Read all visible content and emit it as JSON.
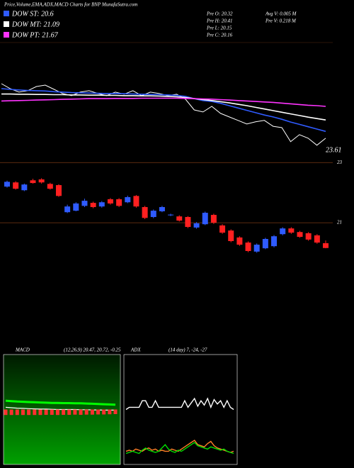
{
  "chart_data": [
    {
      "type": "line",
      "title": "Price,Volume,EMA,ADX,MACD Charts for BNP MunafaSutra.com",
      "annotations": [
        "Pre O: 20.32",
        "Pre H: 20.41",
        "Pre L: 20.15",
        "Pre C: 20.16",
        "Avg V: 0.005 M",
        "Pre V: 0.218 M",
        "23.61"
      ],
      "ylim": [
        19.7,
        24.4
      ],
      "series": [
        {
          "color": "#ffffff",
          "values": [
            22.64,
            22.43,
            22.28,
            22.34,
            22.52,
            22.58,
            22.4,
            22.22,
            22.13,
            22.28,
            22.34,
            22.22,
            22.13,
            22.28,
            22.19,
            22.34,
            22.13,
            22.28,
            22.22,
            22.13,
            22.19,
            21.98,
            21.52,
            21.43,
            21.67,
            21.37,
            21.22,
            21.07,
            20.92,
            21.01,
            21.07,
            20.82,
            20.76,
            20.16,
            20.46,
            20.31,
            20.01,
            20.31
          ]
        },
        {
          "name": "DOW ST: 20.6",
          "color": "#2f5bff",
          "values": [
            22.43,
            22.4,
            22.37,
            22.35,
            22.34,
            22.33,
            22.3,
            22.28,
            22.26,
            22.25,
            22.24,
            22.23,
            22.22,
            22.22,
            22.21,
            22.2,
            22.19,
            22.18,
            22.17,
            22.16,
            22.14,
            22.1,
            22.0,
            21.92,
            21.88,
            21.8,
            21.7,
            21.6,
            21.5,
            21.4,
            21.3,
            21.22,
            21.12,
            21.0,
            20.9,
            20.8,
            20.7,
            20.6
          ]
        },
        {
          "name": "DOW MT: 21.09",
          "color": "#ffffff",
          "values": [
            22.2,
            22.2,
            22.19,
            22.19,
            22.18,
            22.18,
            22.17,
            22.17,
            22.16,
            22.16,
            22.15,
            22.15,
            22.14,
            22.14,
            22.13,
            22.13,
            22.12,
            22.12,
            22.11,
            22.1,
            22.08,
            22.05,
            22.0,
            21.96,
            21.92,
            21.87,
            21.82,
            21.76,
            21.7,
            21.63,
            21.56,
            21.49,
            21.42,
            21.35,
            21.28,
            21.21,
            21.15,
            21.09
          ]
        },
        {
          "name": "DOW PT: 21.67",
          "color": "#ff33ff",
          "values": [
            21.9,
            21.91,
            21.92,
            21.93,
            21.94,
            21.95,
            21.96,
            21.97,
            21.98,
            21.99,
            22.0,
            22.0,
            22.0,
            22.01,
            22.01,
            22.01,
            22.02,
            22.02,
            22.02,
            22.02,
            22.02,
            22.01,
            22.0,
            21.99,
            21.98,
            21.96,
            21.94,
            21.92,
            21.9,
            21.88,
            21.86,
            21.84,
            21.81,
            21.78,
            21.75,
            21.72,
            21.7,
            21.67
          ]
        }
      ]
    },
    {
      "type": "candlestick",
      "ylim": [
        19.8,
        23.1
      ],
      "yticks": [
        21,
        23
      ],
      "up_color": "#2f5bff",
      "down_color": "#ff2020",
      "open": [
        22.2,
        22.34,
        22.08,
        22.41,
        22.44,
        22.29,
        22.25,
        21.35,
        21.4,
        21.56,
        21.66,
        21.54,
        21.78,
        21.78,
        21.68,
        21.89,
        21.52,
        21.19,
        21.38,
        21.26,
        21.21,
        21.19,
        20.84,
        20.95,
        21.26,
        20.91,
        20.74,
        20.51,
        20.34,
        20.04,
        20.15,
        20.22,
        20.62,
        20.81,
        20.69,
        20.65,
        20.58,
        20.32
      ],
      "high": [
        22.4,
        22.38,
        22.3,
        22.46,
        22.48,
        22.33,
        22.28,
        21.6,
        21.68,
        21.8,
        21.7,
        21.72,
        21.82,
        21.82,
        21.9,
        21.92,
        21.56,
        21.44,
        21.56,
        21.3,
        21.25,
        21.22,
        21.02,
        21.37,
        21.3,
        20.95,
        20.78,
        20.55,
        20.38,
        20.31,
        20.5,
        20.59,
        20.85,
        20.85,
        20.73,
        20.69,
        20.62,
        20.41
      ],
      "low": [
        22.17,
        22.1,
        22.05,
        22.3,
        22.3,
        22.1,
        21.86,
        21.32,
        21.38,
        21.52,
        21.48,
        21.5,
        21.6,
        21.52,
        21.65,
        21.5,
        21.12,
        21.15,
        21.35,
        21.22,
        21.04,
        20.82,
        20.8,
        20.92,
        20.96,
        20.63,
        20.35,
        20.23,
        20.02,
        20.0,
        20.12,
        20.18,
        20.58,
        20.63,
        20.5,
        20.4,
        20.3,
        20.15
      ],
      "close": [
        22.36,
        22.13,
        22.27,
        22.32,
        22.34,
        22.13,
        21.89,
        21.54,
        21.64,
        21.73,
        21.52,
        21.68,
        21.64,
        21.56,
        21.85,
        21.54,
        21.16,
        21.4,
        21.52,
        21.27,
        21.07,
        20.86,
        20.98,
        21.33,
        21.0,
        20.67,
        20.39,
        20.27,
        20.06,
        20.27,
        20.46,
        20.55,
        20.81,
        20.67,
        20.53,
        20.44,
        20.34,
        20.16
      ]
    },
    {
      "type": "macd",
      "title": "MACD",
      "subtitle": "(12,26,9) 20.47, 20.72, -0.25",
      "ylim": [
        18,
        23
      ],
      "y2lim": [
        -3,
        3
      ],
      "series": [
        {
          "color": "#00ff00",
          "values": [
            20.9,
            20.88,
            20.86,
            20.85,
            20.84,
            20.83,
            20.82,
            20.81,
            20.8,
            20.8,
            20.79,
            20.79,
            20.78,
            20.78,
            20.77,
            20.76,
            20.75,
            20.74,
            20.73,
            20.72
          ]
        },
        {
          "color": "#ffffff",
          "values": [
            20.6,
            20.58,
            20.56,
            20.55,
            20.54,
            20.53,
            20.52,
            20.52,
            20.51,
            20.5,
            20.5,
            20.5,
            20.5,
            20.49,
            20.49,
            20.48,
            20.48,
            20.47,
            20.47,
            20.47
          ]
        },
        {
          "color": "#ff3030",
          "axis": "y2",
          "values": [
            -0.3,
            -0.3,
            -0.3,
            -0.3,
            -0.3,
            -0.3,
            -0.3,
            -0.29,
            -0.29,
            -0.3,
            -0.29,
            -0.29,
            -0.28,
            -0.29,
            -0.28,
            -0.28,
            -0.27,
            -0.27,
            -0.26,
            -0.25
          ]
        }
      ]
    },
    {
      "type": "adx",
      "title": "ADX",
      "subtitle": "(14 day) 7, -24, -27",
      "ylim": [
        0,
        100
      ],
      "series": [
        {
          "color": "#ffffff",
          "values": [
            50,
            52,
            52,
            52,
            52,
            58,
            58,
            52,
            52,
            58,
            52,
            52,
            52,
            52,
            52,
            52,
            52,
            52,
            58,
            52,
            56,
            60,
            53,
            58,
            54,
            60,
            52,
            59,
            55,
            58,
            52,
            58,
            52,
            50
          ]
        },
        {
          "color": "#ff7f27",
          "values": [
            12,
            13,
            12,
            14,
            13,
            12,
            14,
            15,
            13,
            14,
            12,
            13,
            12,
            12,
            14,
            13,
            12,
            14,
            16,
            18,
            20,
            22,
            18,
            17,
            16,
            19,
            21,
            17,
            15,
            14,
            13,
            12,
            11,
            12
          ]
        },
        {
          "color": "#00dd00",
          "values": [
            10,
            11,
            12,
            11,
            10,
            13,
            15,
            13,
            12,
            11,
            12,
            15,
            18,
            14,
            12,
            11,
            13,
            12,
            14,
            16,
            18,
            20,
            17,
            16,
            15,
            14,
            16,
            15,
            14,
            13,
            14,
            12,
            11,
            10
          ]
        }
      ]
    }
  ]
}
